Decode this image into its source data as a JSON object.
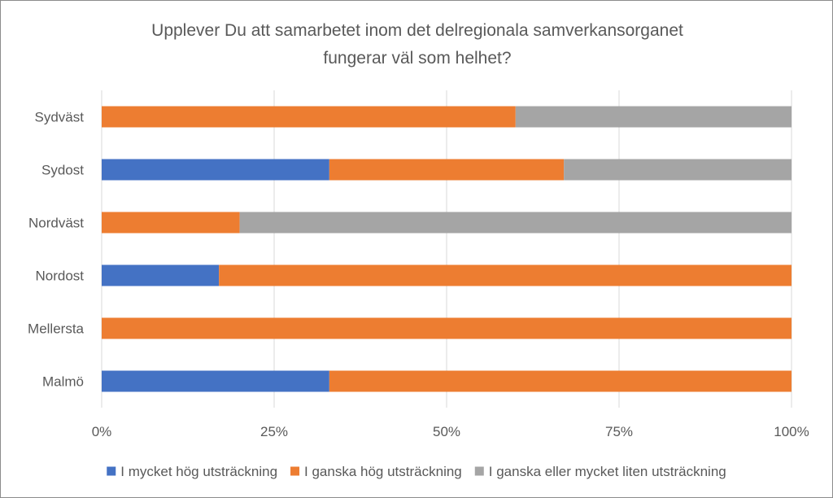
{
  "chart_data": {
    "type": "bar",
    "orientation": "horizontal",
    "stacked": "percent",
    "title": [
      "Upplever Du att samarbetet inom det delregionala samverkansorganet",
      "fungerar väl som helhet?"
    ],
    "categories": [
      "Sydväst",
      "Sydost",
      "Nordväst",
      "Nordost",
      "Mellersta",
      "Malmö"
    ],
    "series": [
      {
        "name": "I mycket hög utsträckning",
        "color": "#4472c4",
        "values": [
          0,
          33,
          0,
          17,
          0,
          33
        ]
      },
      {
        "name": "I ganska hög utsträckning",
        "color": "#ed7d31",
        "values": [
          60,
          34,
          20,
          83,
          100,
          67
        ]
      },
      {
        "name": "I ganska eller mycket liten utsträckning",
        "color": "#a5a5a5",
        "values": [
          40,
          33,
          80,
          0,
          0,
          0
        ]
      }
    ],
    "xticks": [
      "0%",
      "25%",
      "50%",
      "75%",
      "100%"
    ],
    "xlim": [
      0,
      100
    ],
    "grid": true,
    "legend": "bottom"
  }
}
